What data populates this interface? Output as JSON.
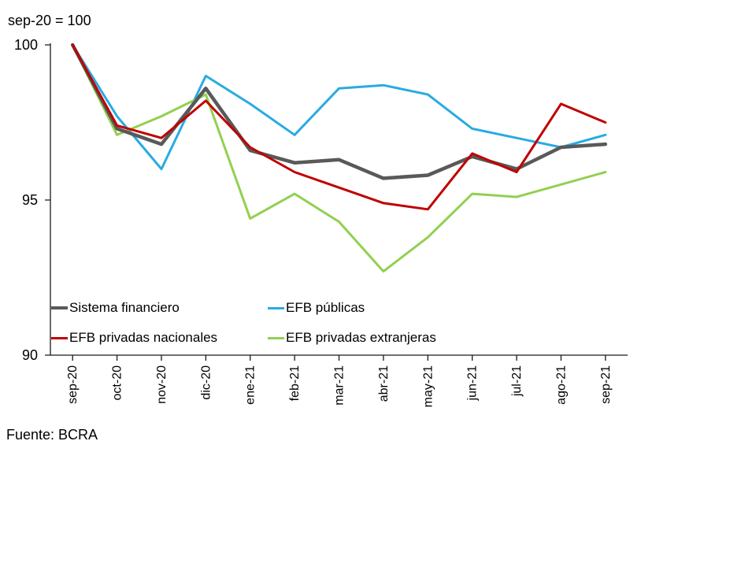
{
  "note": "sep-20 = 100",
  "source": "Fuente: BCRA",
  "chart_data": {
    "type": "line",
    "title": "",
    "xlabel": "",
    "ylabel": "sep-20 = 100",
    "ylim": [
      90,
      100
    ],
    "yticks": [
      100,
      95,
      90
    ],
    "grid": false,
    "legend_position": "inside-bottom-left",
    "legend_columns": 2,
    "categories": [
      "sep-20",
      "oct-20",
      "nov-20",
      "dic-20",
      "ene-21",
      "feb-21",
      "mar-21",
      "abr-21",
      "may-21",
      "jun-21",
      "jul-21",
      "ago-21",
      "sep-21"
    ],
    "series": [
      {
        "name": "Sistema financiero",
        "color": "#595959",
        "line_width": 4.5,
        "values": [
          100,
          97.3,
          96.8,
          98.6,
          96.6,
          96.2,
          96.3,
          95.7,
          95.8,
          96.4,
          96.0,
          96.7,
          96.8
        ]
      },
      {
        "name": "EFB públicas",
        "color": "#29ABE2",
        "line_width": 3,
        "values": [
          100,
          97.7,
          96.0,
          99.0,
          98.1,
          97.1,
          98.6,
          98.7,
          98.4,
          97.3,
          97.0,
          96.7,
          97.1
        ]
      },
      {
        "name": "EFB privadas nacionales",
        "color": "#C00000",
        "line_width": 3,
        "values": [
          100,
          97.4,
          97.0,
          98.2,
          96.7,
          95.9,
          95.4,
          94.9,
          94.7,
          96.5,
          95.9,
          98.1,
          97.5
        ]
      },
      {
        "name": "EFB privadas extranjeras",
        "color": "#92D050",
        "line_width": 3,
        "values": [
          100,
          97.1,
          97.7,
          98.4,
          94.4,
          95.2,
          94.3,
          92.7,
          93.8,
          95.2,
          95.1,
          95.5,
          95.9
        ]
      }
    ]
  }
}
